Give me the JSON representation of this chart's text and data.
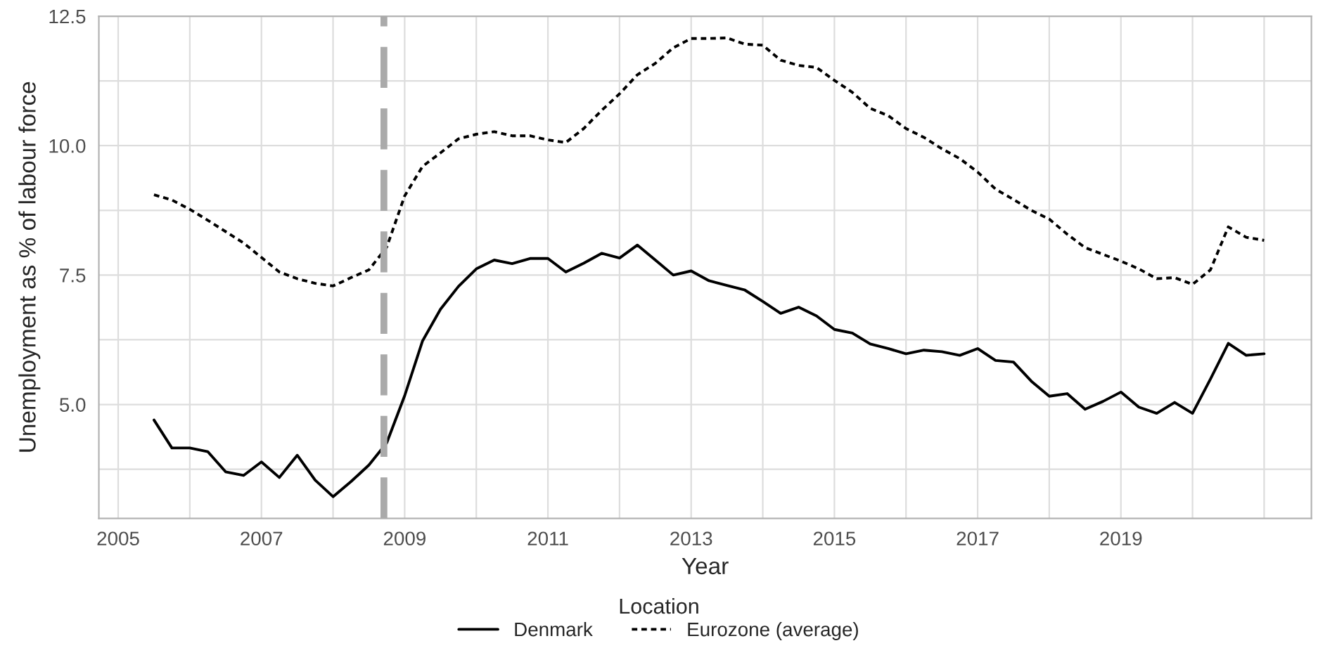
{
  "chart_data": {
    "type": "line",
    "xlabel": "Year",
    "ylabel": "Unemployment as % of labour force",
    "legend_title": "Location",
    "x": [
      2005.5,
      2005.75,
      2006.0,
      2006.25,
      2006.5,
      2006.75,
      2007.0,
      2007.25,
      2007.5,
      2007.75,
      2008.0,
      2008.25,
      2008.5,
      2008.75,
      2009.0,
      2009.25,
      2009.5,
      2009.75,
      2010.0,
      2010.25,
      2010.5,
      2010.75,
      2011.0,
      2011.25,
      2011.5,
      2011.75,
      2012.0,
      2012.25,
      2012.5,
      2012.75,
      2013.0,
      2013.25,
      2013.5,
      2013.75,
      2014.0,
      2014.25,
      2014.5,
      2014.75,
      2015.0,
      2015.25,
      2015.5,
      2015.75,
      2016.0,
      2016.25,
      2016.5,
      2016.75,
      2017.0,
      2017.25,
      2017.5,
      2017.75,
      2018.0,
      2018.25,
      2018.5,
      2018.75,
      2019.0,
      2019.25,
      2019.5,
      2019.75,
      2020.0,
      2020.25,
      2020.5,
      2020.75,
      2021.0
    ],
    "series": [
      {
        "name": "Denmark",
        "color": "#000000",
        "line_style": "solid",
        "values": [
          4.7,
          4.16,
          4.16,
          4.09,
          3.7,
          3.63,
          3.89,
          3.59,
          4.02,
          3.54,
          3.22,
          3.51,
          3.83,
          4.26,
          5.17,
          6.23,
          6.84,
          7.28,
          7.62,
          7.79,
          7.72,
          7.82,
          7.82,
          7.56,
          7.73,
          7.92,
          7.83,
          8.08,
          7.79,
          7.5,
          7.58,
          7.39,
          7.3,
          7.21,
          6.99,
          6.76,
          6.88,
          6.71,
          6.45,
          6.38,
          6.17,
          6.08,
          5.98,
          6.05,
          6.02,
          5.95,
          6.08,
          5.85,
          5.82,
          5.45,
          5.16,
          5.21,
          4.91,
          5.06,
          5.24,
          4.95,
          4.83,
          5.04,
          4.83,
          5.49,
          6.18,
          5.95,
          5.98
        ]
      },
      {
        "name": "Eurozone (average)",
        "color": "#000000",
        "line_style": "dotted",
        "values": [
          9.05,
          8.95,
          8.77,
          8.56,
          8.34,
          8.12,
          7.84,
          7.56,
          7.43,
          7.34,
          7.29,
          7.45,
          7.6,
          8.04,
          9.03,
          9.6,
          9.86,
          10.13,
          10.22,
          10.27,
          10.19,
          10.19,
          10.11,
          10.06,
          10.33,
          10.68,
          11.0,
          11.37,
          11.59,
          11.89,
          12.07,
          12.07,
          12.08,
          11.96,
          11.94,
          11.65,
          11.55,
          11.51,
          11.26,
          11.03,
          10.72,
          10.58,
          10.33,
          10.16,
          9.94,
          9.75,
          9.49,
          9.16,
          8.96,
          8.75,
          8.58,
          8.29,
          8.03,
          7.9,
          7.77,
          7.62,
          7.43,
          7.45,
          7.32,
          7.6,
          8.43,
          8.23,
          8.17
        ]
      }
    ],
    "xlim": [
      2004.73,
      2021.66
    ],
    "ylim": [
      2.8,
      12.5
    ],
    "xticks": [
      2005,
      {
        "value": 2006,
        "label": null
      },
      2007,
      {
        "value": 2008,
        "label": null
      },
      2009,
      {
        "value": 2010,
        "label": null
      },
      2011,
      {
        "value": 2012,
        "label": null
      },
      2013,
      {
        "value": 2014,
        "label": null
      },
      2015,
      {
        "value": 2016,
        "label": null
      },
      2017,
      {
        "value": 2018,
        "label": null
      },
      2019,
      {
        "value": 2020,
        "label": null
      },
      {
        "value": 2021,
        "label": null
      }
    ],
    "yticks": [
      {
        "value": 3.75,
        "label": null
      },
      {
        "value": 5,
        "label": "5.0"
      },
      {
        "value": 6.25,
        "label": null
      },
      {
        "value": 7.5,
        "label": "7.5"
      },
      {
        "value": 8.75,
        "label": null
      },
      {
        "value": 10,
        "label": "10.0"
      },
      {
        "value": 11.25,
        "label": null
      },
      {
        "value": 12.5,
        "label": "12.5"
      }
    ],
    "ref_lines": [
      {
        "axis": "x",
        "value": 2008.71,
        "color": "#aaaaaa",
        "line_style": "dashed"
      }
    ],
    "grid": true,
    "legend": "bottom",
    "marker": "none"
  }
}
